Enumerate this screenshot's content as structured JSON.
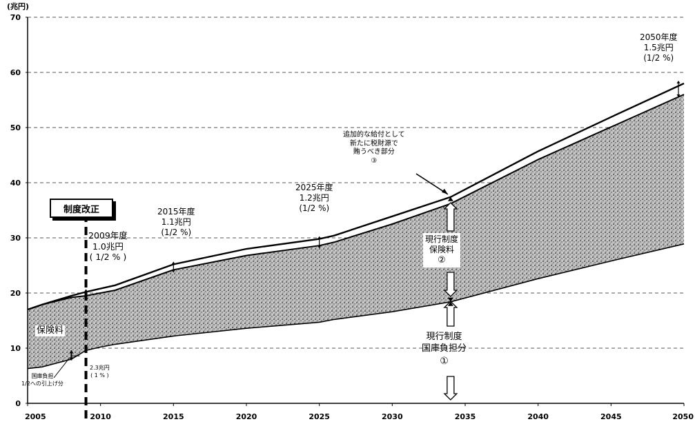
{
  "chart_data": {
    "type": "area",
    "unit_label": "(兆円)",
    "x": [
      2005,
      2006,
      2008,
      2009,
      2010,
      2011,
      2015,
      2020,
      2025,
      2026,
      2030,
      2034,
      2040,
      2045,
      2050
    ],
    "xlim": [
      2005,
      2050
    ],
    "ylim": [
      0,
      70
    ],
    "x_ticks": [
      "2005",
      "2010",
      "2015",
      "2020",
      "2025",
      "2030",
      "2035",
      "2040",
      "2045",
      "2050"
    ],
    "y_ticks": [
      "0",
      "10",
      "20",
      "30",
      "40",
      "50",
      "60",
      "70"
    ],
    "grid": "horizontal-dashed",
    "series": [
      {
        "values": [
          6.3,
          6.6,
          8.0,
          9.6,
          10.2,
          10.7,
          12.2,
          13.6,
          14.7,
          15.2,
          16.6,
          18.4,
          22.6,
          25.8,
          28.9
        ]
      },
      {
        "values": [
          17.0,
          17.9,
          19.2,
          19.5,
          20.0,
          20.5,
          24.2,
          26.8,
          28.6,
          29.2,
          32.5,
          36.2,
          44.2,
          50.1,
          56.0
        ]
      },
      {
        "values": [
          17.0,
          17.9,
          19.5,
          20.2,
          20.8,
          21.4,
          25.2,
          28.0,
          29.8,
          30.4,
          33.9,
          37.4,
          45.7,
          51.9,
          58.0
        ]
      }
    ],
    "annotations": {
      "reform": "制度改正",
      "fy2009": {
        "year": "2009年度",
        "amount": "1.0兆円",
        "ratio": "( 1/2 % )"
      },
      "fy2015": {
        "year": "2015年度",
        "amount": "1.1兆円",
        "ratio": "(1/2 %)"
      },
      "fy2025": {
        "year": "2025年度",
        "amount": "1.2兆円",
        "ratio": "(1/2 %)"
      },
      "fy2050": {
        "year": "2050年度",
        "amount": "1.5兆円",
        "ratio": "(1/2 %)"
      },
      "additional": {
        "line1": "追加的な給付として",
        "line2": "新たに税財源で",
        "line3": "賄うべき部分",
        "num": "③"
      },
      "premium_current": {
        "line1": "現行制度",
        "line2": "保険料",
        "num": "②"
      },
      "state_current": {
        "line1": "現行制度",
        "line2": "国庫負担分",
        "num": "①"
      },
      "premium": "保険料",
      "state_raise": {
        "line1": "国庫負担",
        "line2": "1/2への引上げ分"
      },
      "raise_amount": {
        "amount": "2.3兆円",
        "ratio": "( 1 % )"
      }
    }
  }
}
